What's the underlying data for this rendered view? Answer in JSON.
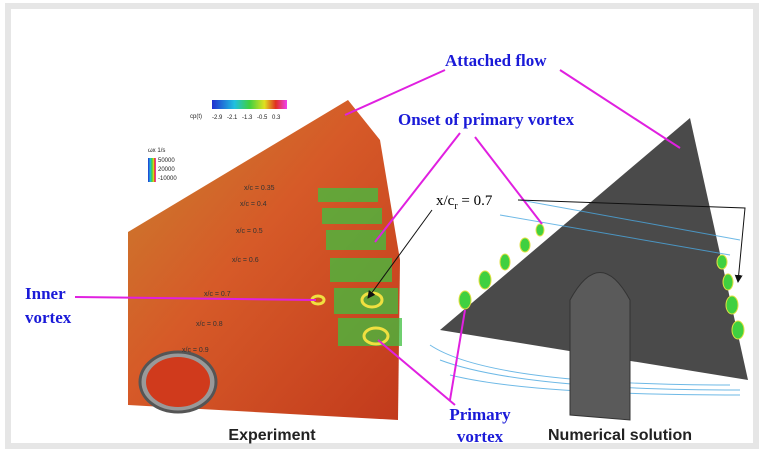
{
  "header": {
    "attached_flow": "Attached flow",
    "onset": "Onset of primary vortex"
  },
  "station_label": {
    "symbol": "x/c",
    "subscript": "r",
    "value": " = 0.7"
  },
  "inner_vortex": [
    "Inner",
    "vortex"
  ],
  "primary_vortex": [
    "Primary",
    "vortex"
  ],
  "panels": [
    {
      "caption": "Experiment"
    },
    {
      "caption": "Numerical solution"
    }
  ],
  "colorbar_cp": {
    "label": "cp(t)",
    "ticks": [
      "-2.9",
      "-2.1",
      "-1.3",
      "-0.5",
      "0.3"
    ]
  },
  "colorbar_omega": {
    "label": "ωx 1/s",
    "ticks": [
      "50000",
      "20000",
      "-10000"
    ]
  },
  "stations": [
    "x/c = 0.35",
    "x/c = 0.4",
    "x/c = 0.5",
    "x/c = 0.6",
    "x/c = 0.7",
    "x/c = 0.8",
    "x/c = 0.9"
  ]
}
